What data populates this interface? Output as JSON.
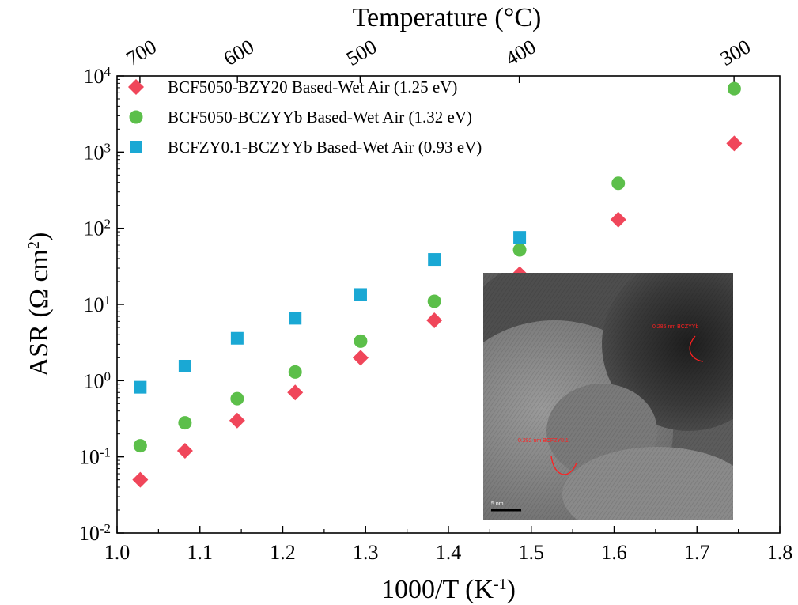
{
  "chart_data": {
    "type": "scatter",
    "xlabel": "1000/T",
    "xlabel_unit": "K",
    "xlabel_unit_sup": "-1",
    "ylabel": "ASR",
    "ylabel_unit": "Ω cm",
    "ylabel_unit_sup": "2",
    "top_xlabel": "Temperature",
    "top_xlabel_unit": "°C",
    "top_axis_label_prefix": "(",
    "top_axis_label_suffix": ")",
    "xlim": [
      1.0,
      1.8
    ],
    "ylim": [
      0.01,
      10000
    ],
    "yscale": "log",
    "x_ticks": [
      "1.0",
      "1.1",
      "1.2",
      "1.3",
      "1.4",
      "1.5",
      "1.6",
      "1.7",
      "1.8"
    ],
    "y_ticks": [
      {
        "base": "10",
        "exp": "-2"
      },
      {
        "base": "10",
        "exp": "-1"
      },
      {
        "base": "10",
        "exp": "0"
      },
      {
        "base": "10",
        "exp": "1"
      },
      {
        "base": "10",
        "exp": "2"
      },
      {
        "base": "10",
        "exp": "3"
      },
      {
        "base": "10",
        "exp": "4"
      }
    ],
    "top_ticks": [
      {
        "label": "700",
        "celsius": 700
      },
      {
        "label": "600",
        "celsius": 600
      },
      {
        "label": "500",
        "celsius": 500
      },
      {
        "label": "400",
        "celsius": 400
      },
      {
        "label": "300",
        "celsius": 300
      }
    ],
    "legend_position": "top-left",
    "series": [
      {
        "name": "BCF5050-BZY20 Based-Wet Air (1.25 eV)",
        "marker": "diamond",
        "color": "#f0465a",
        "x": [
          1.028,
          1.082,
          1.145,
          1.215,
          1.294,
          1.383,
          1.486,
          1.605,
          1.745
        ],
        "y": [
          0.05,
          0.12,
          0.3,
          0.7,
          2.0,
          6.2,
          25,
          130,
          1300
        ]
      },
      {
        "name": "BCF5050-BCZYYb Based-Wet Air (1.32 eV)",
        "marker": "circle",
        "color": "#5cbf4a",
        "x": [
          1.028,
          1.082,
          1.145,
          1.215,
          1.294,
          1.383,
          1.486,
          1.605,
          1.745
        ],
        "y": [
          0.14,
          0.28,
          0.58,
          1.3,
          3.3,
          11,
          52,
          390,
          6800
        ]
      },
      {
        "name": "BCFZY0.1-BCZYYb Based-Wet Air (0.93 eV)",
        "marker": "square",
        "color": "#1aa8d4",
        "x": [
          1.028,
          1.082,
          1.145,
          1.215,
          1.294,
          1.383,
          1.486
        ],
        "y": [
          0.82,
          1.55,
          3.6,
          6.6,
          13.5,
          39,
          76
        ]
      }
    ]
  },
  "inset": {
    "annotations": [
      "0.285 nm BCZYYb",
      "0.282 nm BCFZY0.1"
    ],
    "scale_bar_label": "5 nm"
  }
}
